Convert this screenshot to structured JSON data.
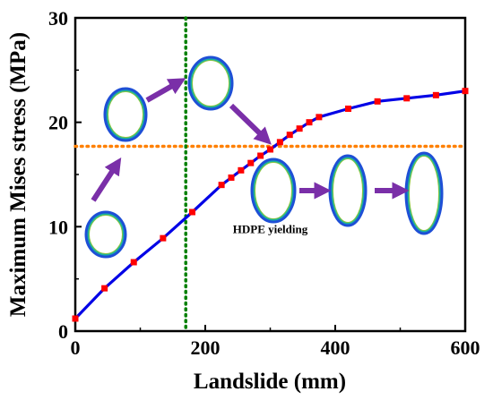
{
  "chart_data": {
    "type": "line",
    "xlabel": "Landslide (mm)",
    "ylabel": "Maximum Mises stress (MPa)",
    "xlim": [
      0,
      600
    ],
    "ylim": [
      0,
      30
    ],
    "x_ticks": [
      0,
      200,
      400,
      600
    ],
    "y_ticks": [
      0,
      10,
      20,
      30
    ],
    "grid": false,
    "legend": "none",
    "series": [
      {
        "line_color": "#0000e6",
        "marker_color": "#ff0000",
        "marker": "square",
        "points": [
          {
            "x": 0,
            "y": 1.2
          },
          {
            "x": 45,
            "y": 4.1
          },
          {
            "x": 90,
            "y": 6.6
          },
          {
            "x": 135,
            "y": 8.9
          },
          {
            "x": 180,
            "y": 11.4
          },
          {
            "x": 225,
            "y": 14.0
          },
          {
            "x": 240,
            "y": 14.7
          },
          {
            "x": 255,
            "y": 15.4
          },
          {
            "x": 270,
            "y": 16.1
          },
          {
            "x": 285,
            "y": 16.8
          },
          {
            "x": 300,
            "y": 17.4
          },
          {
            "x": 315,
            "y": 18.1
          },
          {
            "x": 330,
            "y": 18.8
          },
          {
            "x": 345,
            "y": 19.4
          },
          {
            "x": 360,
            "y": 20.0
          },
          {
            "x": 375,
            "y": 20.5
          },
          {
            "x": 420,
            "y": 21.3
          },
          {
            "x": 465,
            "y": 22.0
          },
          {
            "x": 510,
            "y": 22.3
          },
          {
            "x": 555,
            "y": 22.6
          },
          {
            "x": 600,
            "y": 23.0
          }
        ]
      }
    ],
    "reference_lines": [
      {
        "orientation": "horizontal",
        "y": 17.7,
        "color": "#ff8000",
        "style": "dotted"
      },
      {
        "orientation": "vertical",
        "x": 170,
        "color": "#008000",
        "style": "dotted"
      }
    ],
    "annotations": [
      {
        "text": "HDPE yielding",
        "x": 300,
        "y": 9.4
      }
    ],
    "colors": {
      "arrow": "#7a2fa8",
      "ring_outer": "#1e4fd6",
      "ring_mid": "#1ab0a0",
      "ring_inner": "#8cc63f"
    }
  }
}
